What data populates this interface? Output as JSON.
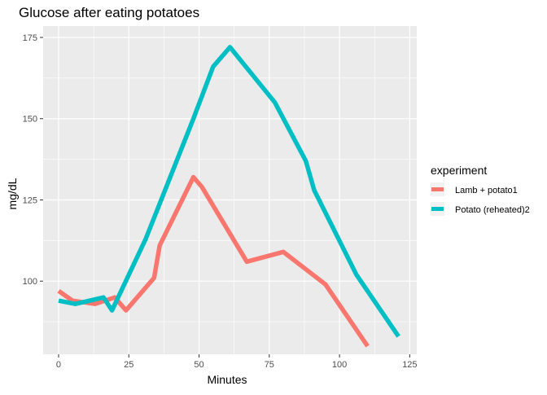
{
  "chart_data": {
    "type": "line",
    "title": "Glucose after eating potatoes",
    "xlabel": "Minutes",
    "ylabel": "mg/dL",
    "xlim": [
      -5.5,
      127.5
    ],
    "ylim": [
      77.5,
      178.5
    ],
    "x_ticks": [
      0,
      25,
      50,
      75,
      100,
      125
    ],
    "y_ticks": [
      100,
      125,
      150,
      175
    ],
    "grid": true,
    "legend": {
      "title": "experiment",
      "placement": "right"
    },
    "series": [
      {
        "name": "Lamb + potato1",
        "color": "#F8766D",
        "x": [
          0,
          5,
          13,
          20,
          24,
          34,
          36,
          48,
          51,
          67,
          80,
          95,
          110
        ],
        "y": [
          97,
          94,
          93,
          95,
          91,
          101,
          111,
          132,
          129,
          106,
          109,
          99,
          80
        ]
      },
      {
        "name": "Potato (reheated)2",
        "color": "#00BFC4",
        "x": [
          0,
          6,
          16,
          19,
          31,
          48,
          55,
          61,
          77,
          88,
          91,
          106,
          121
        ],
        "y": [
          94,
          93,
          95,
          91,
          113,
          150,
          166,
          172,
          155,
          137,
          128,
          102,
          83
        ]
      }
    ]
  }
}
